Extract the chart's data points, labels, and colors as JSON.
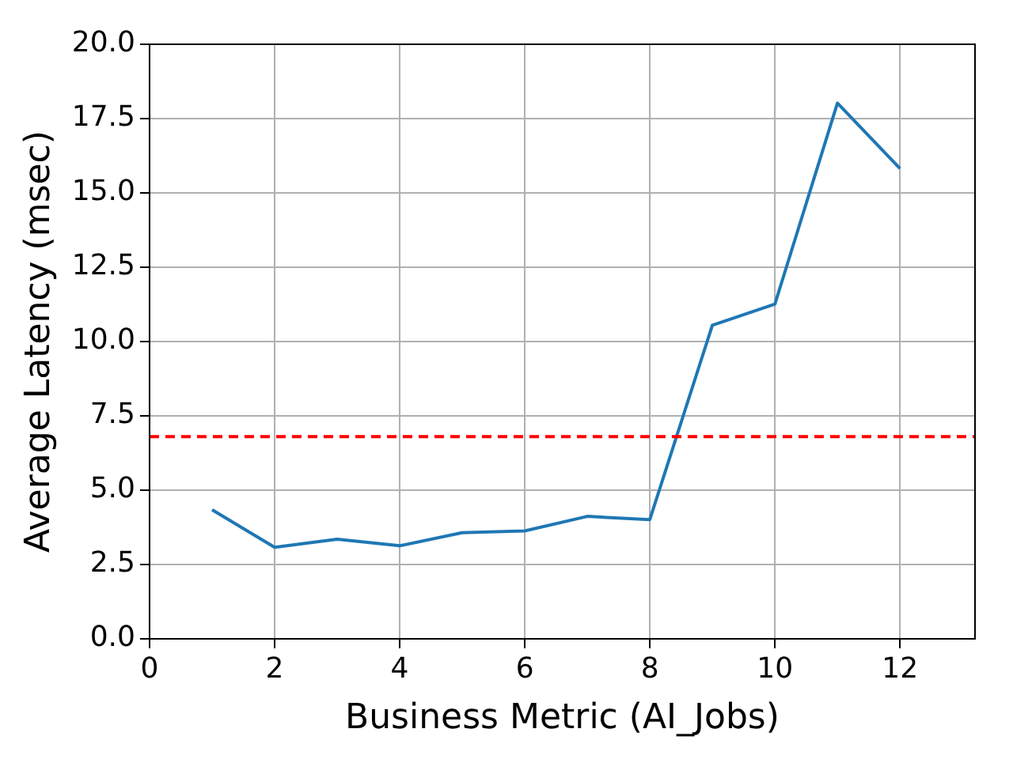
{
  "chart_data": {
    "type": "line",
    "xlabel": "Business Metric (AI_Jobs)",
    "ylabel": "Average Latency (msec)",
    "x": [
      1,
      2,
      3,
      4,
      5,
      6,
      7,
      8,
      9,
      10,
      11,
      12
    ],
    "series": [
      {
        "color": "#1f77b4",
        "values": [
          4.34,
          3.08,
          3.35,
          3.13,
          3.57,
          3.63,
          4.12,
          4.01,
          10.55,
          11.26,
          18.02,
          15.82
        ]
      }
    ],
    "xlim": [
      0,
      13.2
    ],
    "xticks": [
      0,
      2,
      4,
      6,
      8,
      10,
      12
    ],
    "ylim": [
      0,
      20
    ],
    "yticks": [
      {
        "value": 0,
        "label": "0.0"
      },
      2.5,
      {
        "value": 5,
        "label": "5.0"
      },
      7.5,
      {
        "value": 10,
        "label": "10.0"
      },
      12.5,
      {
        "value": 15,
        "label": "15.0"
      },
      17.5,
      {
        "value": 20,
        "label": "20.0"
      }
    ],
    "ref_lines": [
      {
        "axis": "y",
        "value": 6.8,
        "color": "#ff0000",
        "line_style": "dashed"
      }
    ],
    "grid": true,
    "legend": false,
    "marker": "none",
    "line_style": "solid"
  }
}
